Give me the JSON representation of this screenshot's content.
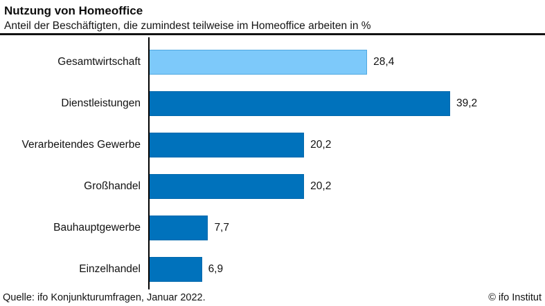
{
  "header": {
    "title": "Nutzung von Homeoffice",
    "subtitle": "Anteil der Beschäftigten, die zumindest teilweise im Homeoffice arbeiten in %"
  },
  "chart_data": {
    "type": "bar",
    "orientation": "horizontal",
    "title": "Nutzung von Homeoffice",
    "subtitle": "Anteil der Beschäftigten, die zumindest teilweise im Homeoffice arbeiten in %",
    "categories": [
      "Gesamtwirtschaft",
      "Dienstleistungen",
      "Verarbeitendes Gewerbe",
      "Großhandel",
      "Bauhauptgewerbe",
      "Einzelhandel"
    ],
    "values": [
      28.4,
      39.2,
      20.2,
      20.2,
      7.7,
      6.9
    ],
    "value_labels": [
      "28,4",
      "39,2",
      "20,2",
      "20,2",
      "7,7",
      "6,9"
    ],
    "bar_colors": [
      "#7DC9FA",
      "#0072BC",
      "#0072BC",
      "#0072BC",
      "#0072BC",
      "#0072BC"
    ],
    "bar_border_colors": [
      "#4FA8E0",
      "#0068AC",
      "#0068AC",
      "#0068AC",
      "#0068AC",
      "#0068AC"
    ],
    "xlim": [
      0,
      42
    ],
    "grid": false,
    "axis_color": "#000000",
    "value_label_position": "outside-end"
  },
  "footer": {
    "source": "Quelle: ifo Konjunkturumfragen, Januar 2022.",
    "copyright": "© ifo Institut"
  },
  "colors": {
    "accent_light": "#7DC9FA",
    "accent_dark": "#0072BC",
    "divider": "#121212",
    "text": "#111111",
    "background": "#ffffff"
  }
}
